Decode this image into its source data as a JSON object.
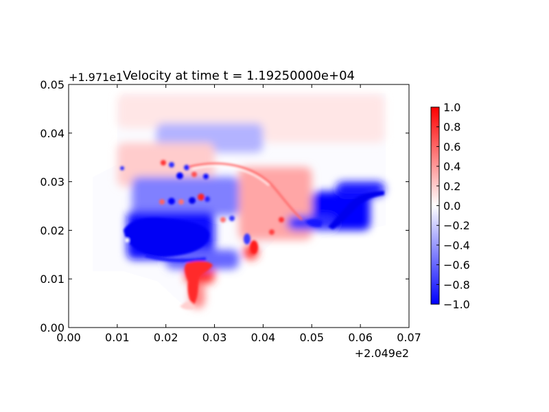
{
  "chart_data": {
    "type": "heatmap",
    "title": "Velocity at time t = 1.19250000e+04",
    "xlabel": "",
    "ylabel": "",
    "x_offset_label": "+2.049e2",
    "y_offset_label": "+1.971e1",
    "xlim": [
      0.0,
      0.07
    ],
    "ylim": [
      0.0,
      0.05
    ],
    "x_ticks": [
      "0.00",
      "0.01",
      "0.02",
      "0.03",
      "0.04",
      "0.05",
      "0.06",
      "0.07"
    ],
    "y_ticks": [
      "0.00",
      "0.01",
      "0.02",
      "0.03",
      "0.04",
      "0.05"
    ],
    "colorbar": {
      "range": [
        -1.0,
        1.0
      ],
      "ticks": [
        "1.0",
        "0.8",
        "0.6",
        "0.4",
        "0.2",
        "0.0",
        "−0.2",
        "−0.4",
        "−0.6",
        "−0.8",
        "−1.0"
      ],
      "colormap": "bwr",
      "low_color": "#0000ff",
      "mid_color": "#ffffff",
      "high_color": "#ff0000"
    },
    "grid": false,
    "fields": [
      {
        "x": [
          0.01,
          0.065
        ],
        "y": [
          0.041,
          0.048
        ],
        "value": 0.1
      },
      {
        "x": [
          0.018,
          0.04
        ],
        "y": [
          0.036,
          0.042
        ],
        "value": -0.3
      },
      {
        "x": [
          0.04,
          0.065
        ],
        "y": [
          0.038,
          0.045
        ],
        "value": 0.1
      },
      {
        "x": [
          0.01,
          0.03
        ],
        "y": [
          0.029,
          0.038
        ],
        "value": 0.2
      },
      {
        "x": [
          0.013,
          0.035
        ],
        "y": [
          0.023,
          0.031
        ],
        "value": -0.5
      },
      {
        "x": [
          0.012,
          0.03
        ],
        "y": [
          0.014,
          0.024
        ],
        "value": -0.95
      },
      {
        "x": [
          0.035,
          0.05
        ],
        "y": [
          0.018,
          0.033
        ],
        "value": 0.35
      },
      {
        "x": [
          0.024,
          0.03
        ],
        "y": [
          0.009,
          0.014
        ],
        "value": 0.8
      },
      {
        "x": [
          0.025,
          0.028
        ],
        "y": [
          0.004,
          0.009
        ],
        "value": 0.5
      },
      {
        "x": [
          0.036,
          0.039
        ],
        "y": [
          0.014,
          0.017
        ],
        "value": 0.8
      },
      {
        "x": [
          0.05,
          0.062
        ],
        "y": [
          0.02,
          0.028
        ],
        "value": -1.0
      },
      {
        "x": [
          0.055,
          0.065
        ],
        "y": [
          0.027,
          0.03
        ],
        "value": -0.9
      },
      {
        "x": [
          0.045,
          0.055
        ],
        "y": [
          0.02,
          0.023
        ],
        "value": -0.8
      },
      {
        "x": [
          0.02,
          0.035
        ],
        "y": [
          0.012,
          0.016
        ],
        "value": -0.6
      }
    ]
  }
}
